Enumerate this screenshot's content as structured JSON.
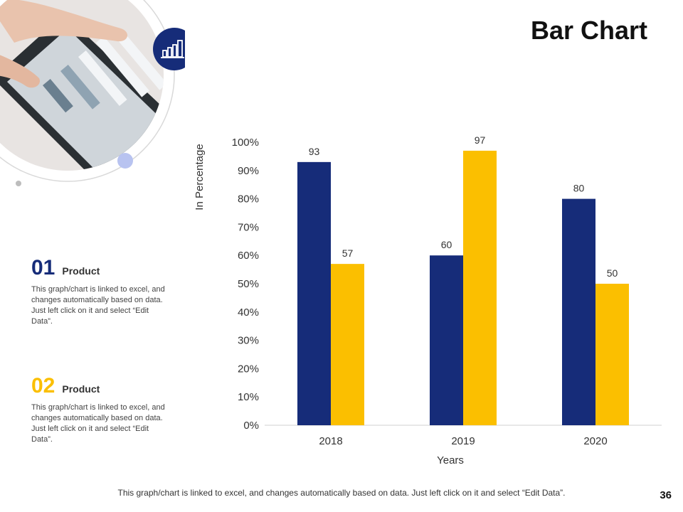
{
  "slide": {
    "title": "Bar Chart",
    "page_number": "36",
    "footer": "This graph/chart is linked to excel, and changes automatically based on data. Just left click on it and select “Edit Data”.",
    "icon": "bar-chart-icon"
  },
  "colors": {
    "navy": "#162c79",
    "gold": "#fbbf00",
    "lavender": "#b8c3f0"
  },
  "legend": [
    {
      "number": "01",
      "label": "Product",
      "color": "#162c79",
      "description": "This graph/chart is linked to excel, and changes automatically based on data. Just left click on it and select “Edit Data”."
    },
    {
      "number": "02",
      "label": "Product",
      "color": "#fbbf00",
      "description": "This graph/chart is linked to excel, and changes automatically based on data. Just left click on it and select “Edit Data”."
    }
  ],
  "chart_data": {
    "type": "bar",
    "title": "",
    "xlabel": "Years",
    "ylabel": "In Percentage",
    "categories": [
      "2018",
      "2019",
      "2020"
    ],
    "series": [
      {
        "name": "Product 01",
        "color": "#162c79",
        "values": [
          93,
          60,
          80
        ]
      },
      {
        "name": "Product 02",
        "color": "#fbbf00",
        "values": [
          57,
          97,
          50
        ]
      }
    ],
    "ylim": [
      0,
      100
    ],
    "yticks": [
      "0%",
      "10%",
      "20%",
      "30%",
      "40%",
      "50%",
      "60%",
      "70%",
      "80%",
      "90%",
      "100%"
    ],
    "grid": false
  }
}
